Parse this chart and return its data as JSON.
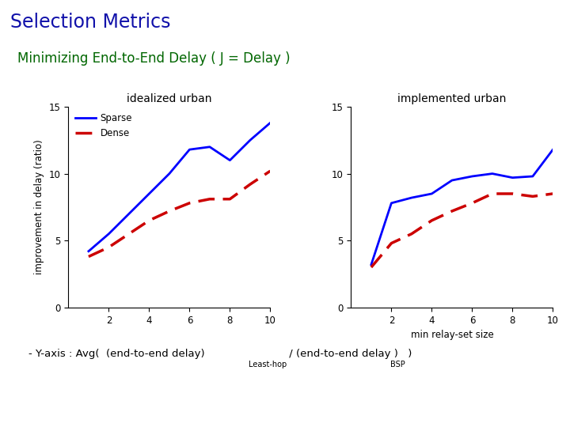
{
  "title": "Selection Metrics",
  "subtitle": "Minimizing End-to-End Delay ( J = Delay )",
  "title_color": "#1111AA",
  "subtitle_color": "#006600",
  "ylabel": "improvement in delay (ratio)",
  "xlabel_right": "min relay-set size",
  "plot1_title": "idealized urban",
  "plot2_title": "implemented urban",
  "x": [
    1,
    2,
    3,
    4,
    5,
    6,
    7,
    8,
    9,
    10
  ],
  "left_sparse": [
    4.2,
    5.5,
    7.0,
    8.5,
    10.0,
    11.8,
    12.0,
    11.0,
    12.5,
    13.8
  ],
  "left_dense": [
    3.8,
    4.5,
    5.5,
    6.5,
    7.2,
    7.8,
    8.1,
    8.1,
    9.2,
    10.2
  ],
  "right_sparse": [
    3.2,
    7.8,
    8.2,
    8.5,
    9.5,
    9.8,
    10.0,
    9.7,
    9.8,
    11.8
  ],
  "right_dense": [
    3.0,
    4.8,
    5.5,
    6.5,
    7.2,
    7.8,
    8.5,
    8.5,
    8.3,
    8.5
  ],
  "sparse_color": "#0000FF",
  "dense_color": "#CC0000",
  "ylim": [
    0,
    15
  ],
  "xlim": [
    0,
    10
  ],
  "yticks": [
    0,
    5,
    10,
    15
  ],
  "xticks": [
    2,
    4,
    6,
    8,
    10
  ],
  "background_color": "#FFFFFF"
}
